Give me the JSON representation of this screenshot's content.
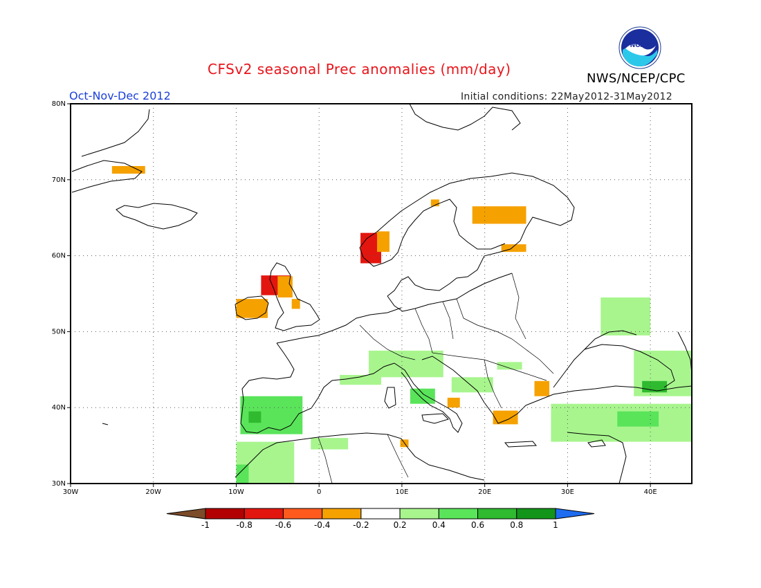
{
  "header": {
    "title": "CFSv2 seasonal Prec anomalies (mm/day)",
    "period": "Oct-Nov-Dec 2012",
    "initial_conditions": "Initial conditions: 22May2012-31May2012",
    "agency": "NWS/NCEP/CPC",
    "logo_text": "NOAA"
  },
  "map": {
    "region": "Europe",
    "lon_range": [
      -30,
      45
    ],
    "lat_range": [
      30,
      80
    ],
    "lat_ticks": [
      "80N",
      "70N",
      "60N",
      "50N",
      "40N",
      "30N"
    ],
    "lon_ticks": [
      "30W",
      "20W",
      "10W",
      "0",
      "10E",
      "20E",
      "30E",
      "40E"
    ],
    "grid": "dotted"
  },
  "colorbar": {
    "labels": [
      "-1",
      "-0.8",
      "-0.6",
      "-0.4",
      "-0.2",
      "0.2",
      "0.4",
      "0.6",
      "0.8",
      "1"
    ],
    "colors": [
      "#7b4b2a",
      "#b30000",
      "#e3160f",
      "#ff5a1e",
      "#f5a100",
      "#ffffff",
      "#a8f58e",
      "#5ae45a",
      "#2fba2f",
      "#13951a",
      "#1e6cf0"
    ]
  },
  "anomaly_patches": [
    {
      "region": "Svalbard/Greenland coast",
      "lon": [
        -25,
        -21
      ],
      "lat": [
        70.8,
        71.8
      ],
      "color": "#f5a100"
    },
    {
      "region": "Western Norway",
      "lon": [
        5,
        7.5
      ],
      "lat": [
        59,
        63
      ],
      "color": "#e3160f"
    },
    {
      "region": "Western Norway margin",
      "lon": [
        7,
        8.5
      ],
      "lat": [
        60.5,
        63.2
      ],
      "color": "#f5a100"
    },
    {
      "region": "Northern Norway",
      "lon": [
        13.5,
        14.5
      ],
      "lat": [
        66.5,
        67.4
      ],
      "color": "#f5a100"
    },
    {
      "region": "Northern Finland",
      "lon": [
        18.5,
        25
      ],
      "lat": [
        64.2,
        66.5
      ],
      "color": "#f5a100"
    },
    {
      "region": "Central Finland",
      "lon": [
        22,
        25
      ],
      "lat": [
        60.5,
        61.5
      ],
      "color": "#f5a100"
    },
    {
      "region": "Scotland",
      "lon": [
        -7,
        -3.5
      ],
      "lat": [
        54.8,
        57.4
      ],
      "color": "#e3160f"
    },
    {
      "region": "Scotland margin",
      "lon": [
        -5,
        -3.2
      ],
      "lat": [
        54.5,
        57.3
      ],
      "color": "#f5a100"
    },
    {
      "region": "Ireland",
      "lon": [
        -10,
        -6.2
      ],
      "lat": [
        51.8,
        54.3
      ],
      "color": "#f5a100"
    },
    {
      "region": "England east",
      "lon": [
        -3.3,
        -2.3
      ],
      "lat": [
        53,
        54.3
      ],
      "color": "#f5a100"
    },
    {
      "region": "Bulgaria",
      "lon": [
        26,
        27.8
      ],
      "lat": [
        41.5,
        43.5
      ],
      "color": "#f5a100"
    },
    {
      "region": "Greece",
      "lon": [
        21,
        24
      ],
      "lat": [
        37.8,
        39.6
      ],
      "color": "#f5a100"
    },
    {
      "region": "Southern Italy",
      "lon": [
        15.5,
        17
      ],
      "lat": [
        40,
        41.3
      ],
      "color": "#f5a100"
    },
    {
      "region": "Tunisia",
      "lon": [
        9.8,
        10.8
      ],
      "lat": [
        34.8,
        35.8
      ],
      "color": "#f5a100"
    },
    {
      "region": "Iberia",
      "lon": [
        -9.5,
        -2
      ],
      "lat": [
        36.5,
        41.5
      ],
      "color": "#5ae45a"
    },
    {
      "region": "Iberia core",
      "lon": [
        -8.5,
        -7
      ],
      "lat": [
        38,
        39.5
      ],
      "color": "#2fba2f"
    },
    {
      "region": "Morocco",
      "lon": [
        -10,
        -3
      ],
      "lat": [
        30,
        35.5
      ],
      "color": "#a8f58e"
    },
    {
      "region": "Morocco coast",
      "lon": [
        -10,
        -8.5
      ],
      "lat": [
        30,
        32.5
      ],
      "color": "#5ae45a"
    },
    {
      "region": "Algeria coast",
      "lon": [
        -1,
        3.5
      ],
      "lat": [
        34.5,
        36
      ],
      "color": "#a8f58e"
    },
    {
      "region": "Alps",
      "lon": [
        6,
        15
      ],
      "lat": [
        44,
        47.5
      ],
      "color": "#a8f58e"
    },
    {
      "region": "Southern France",
      "lon": [
        2.5,
        7.5
      ],
      "lat": [
        43,
        44.3
      ],
      "color": "#a8f58e"
    },
    {
      "region": "Tyrrhenian",
      "lon": [
        11,
        14
      ],
      "lat": [
        40.5,
        42.5
      ],
      "color": "#5ae45a"
    },
    {
      "region": "Balkans",
      "lon": [
        16,
        21
      ],
      "lat": [
        42,
        44
      ],
      "color": "#a8f58e"
    },
    {
      "region": "Romania",
      "lon": [
        21.5,
        24.5
      ],
      "lat": [
        45,
        46
      ],
      "color": "#a8f58e"
    },
    {
      "region": "Turkey",
      "lon": [
        28,
        45
      ],
      "lat": [
        35.5,
        40.5
      ],
      "color": "#a8f58e"
    },
    {
      "region": "Eastern Turkey",
      "lon": [
        36,
        41
      ],
      "lat": [
        37.5,
        39.5
      ],
      "color": "#5ae45a"
    },
    {
      "region": "Caucasus",
      "lon": [
        38,
        45
      ],
      "lat": [
        41.5,
        47.5
      ],
      "color": "#a8f58e"
    },
    {
      "region": "Caucasus core",
      "lon": [
        39,
        42
      ],
      "lat": [
        42,
        43.5
      ],
      "color": "#2fba2f"
    },
    {
      "region": "Southern Russia",
      "lon": [
        34,
        40
      ],
      "lat": [
        49.5,
        54.5
      ],
      "color": "#a8f58e"
    }
  ]
}
